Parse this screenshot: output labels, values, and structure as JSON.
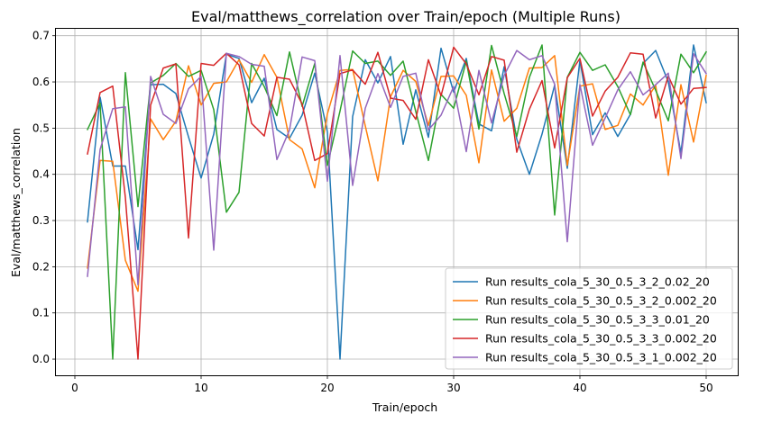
{
  "chart_data": {
    "type": "line",
    "title": "Eval/matthews_correlation over Train/epoch (Multiple Runs)",
    "xlabel": "Train/epoch",
    "ylabel": "Eval/matthews_correlation",
    "xlim": [
      -1.5,
      52.5
    ],
    "ylim": [
      -0.035,
      0.715
    ],
    "xticks": [
      0,
      10,
      20,
      30,
      40,
      50
    ],
    "xtick_labels": [
      "0",
      "10",
      "20",
      "30",
      "40",
      "50"
    ],
    "yticks": [
      0.0,
      0.1,
      0.2,
      0.3,
      0.4,
      0.5,
      0.6,
      0.7
    ],
    "ytick_labels": [
      "0.0",
      "0.1",
      "0.2",
      "0.3",
      "0.4",
      "0.5",
      "0.6",
      "0.7"
    ],
    "grid": true,
    "legend_position": "lower-right",
    "x": [
      1,
      2,
      3,
      4,
      5,
      6,
      7,
      8,
      9,
      10,
      11,
      12,
      13,
      14,
      15,
      16,
      17,
      18,
      19,
      20,
      21,
      22,
      23,
      24,
      25,
      26,
      27,
      28,
      29,
      30,
      31,
      32,
      33,
      34,
      35,
      36,
      37,
      38,
      39,
      40,
      41,
      42,
      43,
      44,
      45,
      46,
      47,
      48,
      49,
      50
    ],
    "series": [
      {
        "name": "Run results_cola_5_30_0.5_3_2_0.02_20",
        "color": "#1f77b4",
        "values": [
          0.297,
          0.567,
          0.418,
          0.418,
          0.237,
          0.594,
          0.595,
          0.575,
          0.481,
          0.392,
          0.487,
          0.66,
          0.651,
          0.555,
          0.608,
          0.497,
          0.478,
          0.528,
          0.619,
          0.492,
          0.0,
          0.525,
          0.648,
          0.598,
          0.655,
          0.465,
          0.583,
          0.48,
          0.673,
          0.578,
          0.651,
          0.509,
          0.494,
          0.633,
          0.476,
          0.4,
          0.487,
          0.593,
          0.413,
          0.647,
          0.486,
          0.533,
          0.482,
          0.53,
          0.64,
          0.668,
          0.6,
          0.446,
          0.68,
          0.555
        ]
      },
      {
        "name": "Run results_cola_5_30_0.5_3_2_0.002_20",
        "color": "#ff7f0e",
        "values": [
          0.197,
          0.43,
          0.428,
          0.214,
          0.147,
          0.52,
          0.475,
          0.515,
          0.635,
          0.55,
          0.597,
          0.6,
          0.648,
          0.599,
          0.659,
          0.61,
          0.475,
          0.455,
          0.371,
          0.531,
          0.625,
          0.627,
          0.505,
          0.386,
          0.568,
          0.625,
          0.601,
          0.506,
          0.612,
          0.613,
          0.571,
          0.425,
          0.626,
          0.515,
          0.543,
          0.63,
          0.631,
          0.657,
          0.419,
          0.591,
          0.596,
          0.497,
          0.506,
          0.574,
          0.55,
          0.593,
          0.398,
          0.594,
          0.47,
          0.614
        ]
      },
      {
        "name": "Run results_cola_5_30_0.5_3_3_0.01_20",
        "color": "#2ca02c",
        "values": [
          0.497,
          0.554,
          0.0,
          0.62,
          0.33,
          0.598,
          0.614,
          0.64,
          0.612,
          0.625,
          0.54,
          0.318,
          0.361,
          0.64,
          0.59,
          0.527,
          0.665,
          0.547,
          0.64,
          0.419,
          0.537,
          0.667,
          0.64,
          0.645,
          0.614,
          0.645,
          0.536,
          0.43,
          0.573,
          0.543,
          0.645,
          0.498,
          0.679,
          0.575,
          0.482,
          0.61,
          0.68,
          0.312,
          0.61,
          0.664,
          0.625,
          0.637,
          0.59,
          0.529,
          0.643,
          0.582,
          0.516,
          0.66,
          0.62,
          0.665
        ]
      },
      {
        "name": "Run results_cola_5_30_0.5_3_3_0.002_20",
        "color": "#d62728",
        "values": [
          0.444,
          0.577,
          0.591,
          0.35,
          0.0,
          0.55,
          0.63,
          0.639,
          0.262,
          0.64,
          0.636,
          0.662,
          0.637,
          0.51,
          0.483,
          0.61,
          0.606,
          0.552,
          0.43,
          0.445,
          0.618,
          0.626,
          0.595,
          0.664,
          0.565,
          0.56,
          0.519,
          0.648,
          0.57,
          0.675,
          0.639,
          0.572,
          0.655,
          0.647,
          0.448,
          0.541,
          0.603,
          0.457,
          0.609,
          0.651,
          0.526,
          0.58,
          0.61,
          0.663,
          0.66,
          0.522,
          0.613,
          0.552,
          0.586,
          0.588
        ]
      },
      {
        "name": "Run results_cola_5_30_0.5_3_1_0.002_20",
        "color": "#9467bd",
        "values": [
          0.179,
          0.454,
          0.542,
          0.546,
          0.161,
          0.612,
          0.53,
          0.51,
          0.585,
          0.612,
          0.236,
          0.662,
          0.655,
          0.638,
          0.634,
          0.432,
          0.496,
          0.654,
          0.646,
          0.385,
          0.657,
          0.376,
          0.543,
          0.618,
          0.545,
          0.612,
          0.619,
          0.496,
          0.528,
          0.59,
          0.449,
          0.625,
          0.511,
          0.614,
          0.668,
          0.648,
          0.657,
          0.595,
          0.254,
          0.594,
          0.463,
          0.522,
          0.583,
          0.622,
          0.572,
          0.594,
          0.619,
          0.434,
          0.661,
          0.618
        ]
      }
    ]
  }
}
